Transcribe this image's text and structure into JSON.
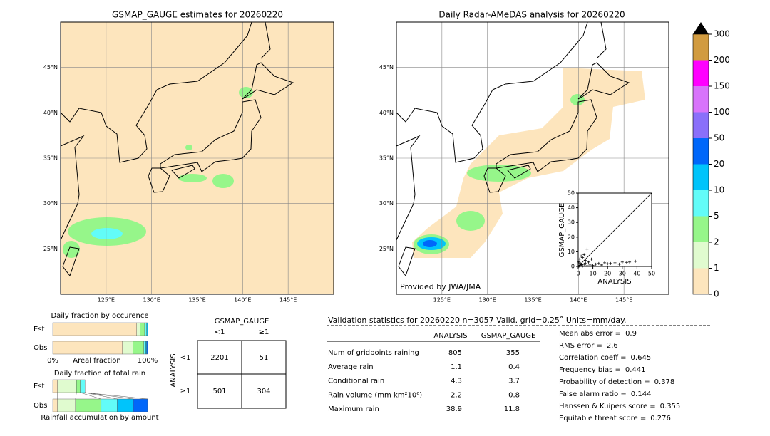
{
  "left_map": {
    "title": "GSMAP_GAUGE estimates for 20260220",
    "xlim": [
      120,
      150
    ],
    "ylim": [
      20,
      50
    ],
    "xticks": [
      {
        "value": 125,
        "label": "125°E"
      },
      {
        "value": 130,
        "label": "130°E"
      },
      {
        "value": 135,
        "label": "135°E"
      },
      {
        "value": 140,
        "label": "140°E"
      },
      {
        "value": 145,
        "label": "145°E"
      }
    ],
    "yticks": [
      {
        "value": 25,
        "label": "25°N"
      },
      {
        "value": 30,
        "label": "30°N"
      },
      {
        "value": 35,
        "label": "35°N"
      },
      {
        "value": 40,
        "label": "40°N"
      },
      {
        "value": 45,
        "label": "45°N"
      }
    ]
  },
  "right_map": {
    "title": "Daily Radar-AMeDAS analysis for 20260220",
    "credit": "Provided by JWA/JMA",
    "xlim": [
      120,
      150
    ],
    "ylim": [
      20,
      50
    ],
    "xticks": [
      {
        "value": 125,
        "label": "125°E"
      },
      {
        "value": 130,
        "label": "130°E"
      },
      {
        "value": 135,
        "label": "135°E"
      },
      {
        "value": 140,
        "label": "140°E"
      },
      {
        "value": 145,
        "label": "145°E"
      }
    ],
    "yticks": [
      {
        "value": 25,
        "label": "25°N"
      },
      {
        "value": 30,
        "label": "30°N"
      },
      {
        "value": 35,
        "label": "35°N"
      },
      {
        "value": 40,
        "label": "40°N"
      },
      {
        "value": 45,
        "label": "45°N"
      }
    ]
  },
  "colorbar": {
    "ticks": [
      0,
      1,
      2,
      5,
      10,
      20,
      50,
      100,
      150,
      200,
      300
    ],
    "colors": [
      "#fde5bd",
      "#e0fbcf",
      "#96f68a",
      "#62fcf8",
      "#00c4fb",
      "#0067fa",
      "#8a6ffa",
      "#d873fb",
      "#ff00ff",
      "#d19b40"
    ],
    "over_color": "#000000"
  },
  "scatter": {
    "type": "scatter",
    "xlabel": "ANALYSIS",
    "ylabel": "GSMAP_GAUGE",
    "xlim": [
      0,
      50
    ],
    "ylim": [
      0,
      50
    ],
    "xticks": [
      0,
      10,
      20,
      30,
      40,
      50
    ],
    "yticks": [
      0,
      10,
      20,
      30,
      40,
      50
    ],
    "x": [
      0.5,
      1,
      2,
      3,
      4,
      5,
      6,
      7,
      8,
      10,
      12,
      14,
      16,
      18,
      20,
      22,
      25,
      28,
      30,
      33,
      35,
      38.9,
      1,
      2,
      3,
      5,
      0.5,
      4,
      9,
      6,
      1.5,
      2.5
    ],
    "y": [
      0.2,
      0.5,
      1,
      0.3,
      1.5,
      2,
      0.5,
      3,
      1,
      0.8,
      1.5,
      2,
      1,
      2.5,
      1.8,
      2,
      2.5,
      1.5,
      3,
      2.8,
      3,
      3.5,
      5,
      7,
      6,
      4,
      3,
      8,
      5,
      11.8,
      2,
      1.2
    ]
  },
  "occurrence": {
    "type": "bar",
    "title": "Daily fraction by occurence",
    "xlabel": "Areal fraction",
    "xlim": [
      0,
      100
    ],
    "xticks": [
      {
        "value": 0,
        "label": "0%"
      },
      {
        "value": 100,
        "label": "100%"
      }
    ],
    "categories": [
      "Est",
      "Obs"
    ],
    "series": [
      {
        "color": "#fde5bd",
        "values": [
          88.5,
          73.5
        ]
      },
      {
        "color": "#e0fbcf",
        "values": [
          3.5,
          11
        ]
      },
      {
        "color": "#96f68a",
        "values": [
          5,
          11.5
        ]
      },
      {
        "color": "#62fcf8",
        "values": [
          2,
          2
        ]
      },
      {
        "color": "#00c4fb",
        "values": [
          1,
          1
        ]
      },
      {
        "color": "#0067fa",
        "values": [
          0,
          1
        ]
      }
    ]
  },
  "total_rain": {
    "type": "bar",
    "title": "Daily fraction of total rain",
    "xlabel": "Rainfall accumulation by amount",
    "xlim": [
      0,
      100
    ],
    "categories": [
      "Est",
      "Obs"
    ],
    "series": [
      {
        "color": "#fde5bd",
        "values": [
          5,
          5
        ]
      },
      {
        "color": "#e0fbcf",
        "values": [
          20,
          19
        ]
      },
      {
        "color": "#96f68a",
        "values": [
          4,
          27
        ]
      },
      {
        "color": "#62fcf8",
        "values": [
          5,
          17
        ]
      },
      {
        "color": "#00c4fb",
        "values": [
          0,
          17
        ]
      },
      {
        "color": "#0067fa",
        "values": [
          0,
          15
        ]
      }
    ]
  },
  "contingency": {
    "title": "GSMAP_GAUGE",
    "row_title": "ANALYSIS",
    "col_labels": [
      "<1",
      "≥1"
    ],
    "row_labels": [
      "<1",
      "≥1"
    ],
    "cells": [
      [
        2201,
        51
      ],
      [
        501,
        304
      ]
    ]
  },
  "validation": {
    "header": "Validation statistics for 20260220  n=3057 Valid. grid=0.25˚ Units=mm/day.",
    "columns": [
      "ANALYSIS",
      "GSMAP_GAUGE"
    ],
    "rows": [
      {
        "label": "Num of gridpoints raining",
        "values": [
          805,
          355
        ]
      },
      {
        "label": "Average rain",
        "values": [
          1.1,
          0.4
        ]
      },
      {
        "label": "Conditional rain",
        "values": [
          4.3,
          3.7
        ]
      },
      {
        "label": "Rain volume (mm km²10⁶)",
        "values": [
          2.2,
          0.8
        ]
      },
      {
        "label": "Maximum rain",
        "values": [
          38.9,
          11.8
        ]
      }
    ],
    "scores": [
      {
        "label": "Mean abs error =",
        "value": 0.9
      },
      {
        "label": "RMS error =",
        "value": 2.6
      },
      {
        "label": "Correlation coeff =",
        "value": 0.645
      },
      {
        "label": "Frequency bias =",
        "value": 0.441
      },
      {
        "label": "Probability of detection =",
        "value": 0.378
      },
      {
        "label": "False alarm ratio =",
        "value": 0.144
      },
      {
        "label": "Hanssen & Kuipers score =",
        "value": 0.355
      },
      {
        "label": "Equitable threat score =",
        "value": 0.276
      }
    ]
  }
}
